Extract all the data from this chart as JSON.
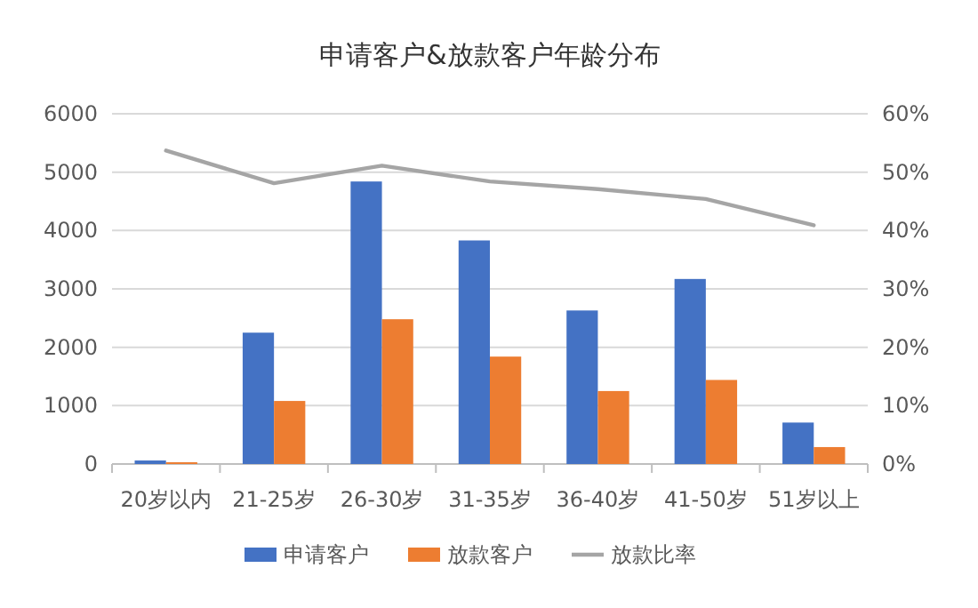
{
  "chart_data": {
    "type": "bar",
    "title": "申请客户&放款客户年龄分布",
    "categories": [
      "20岁以内",
      "21-25岁",
      "26-30岁",
      "31-35岁",
      "36-40岁",
      "41-50岁",
      "51岁以上"
    ],
    "series": [
      {
        "name": "申请客户",
        "color": "#4472c4",
        "values": [
          60,
          2250,
          4840,
          3830,
          2630,
          3170,
          710
        ]
      },
      {
        "name": "放款客户",
        "color": "#ed7d31",
        "values": [
          30,
          1080,
          2480,
          1840,
          1250,
          1440,
          290
        ]
      },
      {
        "name": "放款比率",
        "color": "#a5a5a5",
        "type": "line",
        "axis": "y2",
        "values": [
          53.7,
          48.1,
          51.1,
          48.4,
          47.1,
          45.4,
          40.9
        ]
      }
    ],
    "ylim": [
      0,
      6000
    ],
    "yticks": [
      0,
      1000,
      2000,
      3000,
      4000,
      5000,
      6000
    ],
    "y2lim": [
      0,
      60
    ],
    "y2ticks": [
      {
        "value": 0,
        "label": "0%"
      },
      {
        "value": 10,
        "label": "10%"
      },
      {
        "value": 20,
        "label": "20%"
      },
      {
        "value": 30,
        "label": "30%"
      },
      {
        "value": 40,
        "label": "40%"
      },
      {
        "value": 50,
        "label": "50%"
      },
      {
        "value": 60,
        "label": "60%"
      }
    ],
    "grid": "y",
    "legend": "bottom"
  }
}
